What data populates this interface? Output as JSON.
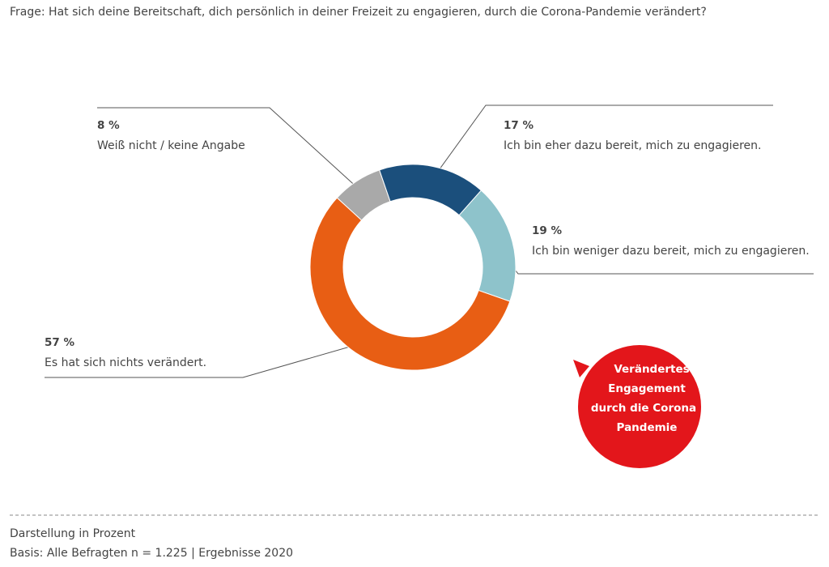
{
  "question": "Frage: Hat sich deine Bereitschaft, dich persönlich in deiner Freizeit zu engagieren, durch die Corona-Pandemie verändert?",
  "chart_data": {
    "type": "donut",
    "categories": [
      "Ich bin eher dazu bereit, mich zu engagieren.",
      "Ich bin weniger dazu bereit, mich zu engagieren.",
      "Es hat sich nichts verändert.",
      "Weiß nicht / keine Angabe"
    ],
    "values": [
      17,
      19,
      57,
      8
    ],
    "value_labels": [
      "17 %",
      "19 %",
      "57 %",
      "8 %"
    ],
    "colors": [
      "#1b4f7c",
      "#8ec3cb",
      "#e85e14",
      "#a9a9a9"
    ]
  },
  "callout": [
    "Verändertes",
    "Engagement",
    "durch die Corona",
    "Pandemie"
  ],
  "footer": [
    "Darstellung in Prozent",
    "Basis: Alle Befragten n = 1.225 | Ergebnisse 2020"
  ]
}
